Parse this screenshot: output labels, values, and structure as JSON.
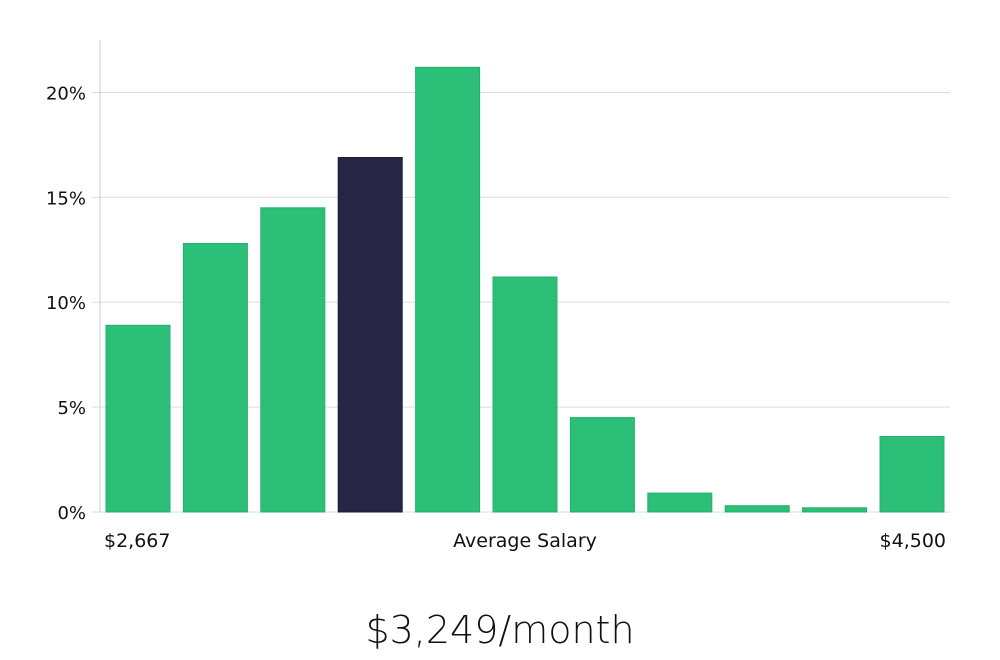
{
  "chart_data": {
    "type": "bar",
    "title": "",
    "xlabel": "Average Salary",
    "ylabel": "",
    "x_range_labels": {
      "min": "$2,667",
      "max": "$4,500"
    },
    "values": [
      8.9,
      12.8,
      14.5,
      16.9,
      21.2,
      11.2,
      4.5,
      0.9,
      0.3,
      0.2,
      3.6
    ],
    "highlight_index": 3,
    "ylim": [
      0,
      22.5
    ],
    "yticks": [
      0,
      5,
      10,
      15,
      20
    ],
    "ytick_labels": [
      "0%",
      "5%",
      "10%",
      "15%",
      "20%"
    ],
    "grid": true,
    "colors": {
      "bar": "#2bbf78",
      "highlight": "#272545",
      "grid": "#dddddd",
      "axis": "#cccccc"
    }
  },
  "summary": {
    "average_label": "$3,249/month"
  }
}
